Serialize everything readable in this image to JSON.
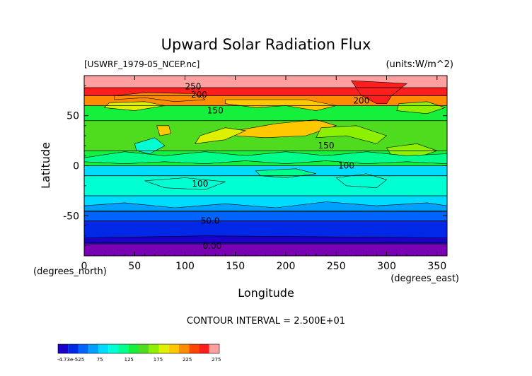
{
  "chart_data": {
    "type": "heatmap",
    "title": "Upward Solar Radiation Flux",
    "file_label": "[USWRF_1979-05_NCEP.nc]",
    "units_label": "(units:W/m^2)",
    "xlabel": "Longitude",
    "ylabel": "Latitude",
    "x_unit_note": "(degrees_east)",
    "y_unit_note": "(degrees_north)",
    "xlim": [
      0,
      360
    ],
    "ylim": [
      -90,
      90
    ],
    "x_ticks": [
      0,
      50,
      100,
      150,
      200,
      250,
      300,
      350
    ],
    "y_ticks": [
      50,
      0,
      -50
    ],
    "contour_interval_text": "CONTOUR INTERVAL = 2.500E+01",
    "contour_interval": 25,
    "colorbar": {
      "labels": [
        "-4.73e-525",
        "75",
        "125",
        "175",
        "225",
        "275"
      ],
      "colors": [
        "#1a00c8",
        "#0028e6",
        "#0064ff",
        "#00a0ff",
        "#00dcff",
        "#00ffd2",
        "#00ff8c",
        "#14f03c",
        "#50dc1e",
        "#8cf000",
        "#dcf000",
        "#ffc800",
        "#ff8c00",
        "#ff4600",
        "#ff1e1e",
        "#ffa0a0"
      ]
    },
    "contour_labels": [
      {
        "text": "250",
        "lon": 108,
        "lat": 79
      },
      {
        "text": "200",
        "lon": 114,
        "lat": 71
      },
      {
        "text": "150",
        "lon": 130,
        "lat": 55
      },
      {
        "text": "200",
        "lon": 275,
        "lat": 65
      },
      {
        "text": "150",
        "lon": 240,
        "lat": 20
      },
      {
        "text": "100",
        "lon": 260,
        "lat": 0
      },
      {
        "text": "100",
        "lon": 115,
        "lat": -18
      },
      {
        "text": "50.0",
        "lon": 125,
        "lat": -55
      },
      {
        "text": "0.00",
        "lon": 127,
        "lat": -80
      }
    ],
    "latitude_bands": [
      {
        "lat": [
          78,
          90
        ],
        "color": "#ffa0a0"
      },
      {
        "lat": [
          70,
          78
        ],
        "color": "#ff1e1e"
      },
      {
        "lat": [
          60,
          70
        ],
        "color": "#ff8c00"
      },
      {
        "lat": [
          45,
          60
        ],
        "color": "#14f03c"
      },
      {
        "lat": [
          15,
          45
        ],
        "color": "#50dc1e"
      },
      {
        "lat": [
          0,
          15
        ],
        "color": "#14f03c"
      },
      {
        "lat": [
          -10,
          0
        ],
        "color": "#00dcff"
      },
      {
        "lat": [
          -30,
          -10
        ],
        "color": "#00ffd2"
      },
      {
        "lat": [
          -45,
          -30
        ],
        "color": "#00dcff"
      },
      {
        "lat": [
          -55,
          -45
        ],
        "color": "#0064ff"
      },
      {
        "lat": [
          -78,
          -55
        ],
        "color": "#0028e6"
      },
      {
        "lat": [
          -90,
          -78
        ],
        "color": "#7a00b4"
      }
    ],
    "regions": [
      {
        "color": "#ff1e1e",
        "pts": [
          [
            265,
            85
          ],
          [
            275,
            70
          ],
          [
            290,
            62
          ],
          [
            300,
            62
          ],
          [
            305,
            70
          ],
          [
            320,
            82
          ],
          [
            265,
            85
          ]
        ]
      },
      {
        "color": "#ff8c00",
        "pts": [
          [
            30,
            66
          ],
          [
            60,
            68
          ],
          [
            90,
            64
          ],
          [
            120,
            66
          ],
          [
            110,
            72
          ],
          [
            60,
            73
          ],
          [
            30,
            70
          ]
        ]
      },
      {
        "color": "#ffc800",
        "pts": [
          [
            140,
            62
          ],
          [
            170,
            58
          ],
          [
            200,
            60
          ],
          [
            230,
            55
          ],
          [
            250,
            60
          ],
          [
            220,
            66
          ],
          [
            170,
            66
          ],
          [
            140,
            66
          ]
        ]
      },
      {
        "color": "#dcf000",
        "pts": [
          [
            20,
            58
          ],
          [
            50,
            55
          ],
          [
            80,
            60
          ],
          [
            60,
            64
          ],
          [
            25,
            63
          ]
        ]
      },
      {
        "color": "#8cf000",
        "pts": [
          [
            310,
            55
          ],
          [
            340,
            52
          ],
          [
            358,
            58
          ],
          [
            340,
            64
          ],
          [
            312,
            62
          ]
        ]
      },
      {
        "color": "#ffc800",
        "pts": [
          [
            150,
            35
          ],
          [
            190,
            42
          ],
          [
            230,
            46
          ],
          [
            250,
            40
          ],
          [
            220,
            30
          ],
          [
            180,
            28
          ],
          [
            150,
            30
          ]
        ]
      },
      {
        "color": "#dcf000",
        "pts": [
          [
            110,
            22
          ],
          [
            140,
            26
          ],
          [
            160,
            35
          ],
          [
            140,
            38
          ],
          [
            115,
            30
          ]
        ]
      },
      {
        "color": "#8cf000",
        "pts": [
          [
            230,
            28
          ],
          [
            260,
            30
          ],
          [
            290,
            22
          ],
          [
            300,
            30
          ],
          [
            270,
            40
          ],
          [
            235,
            38
          ]
        ]
      },
      {
        "color": "#ffc800",
        "pts": [
          [
            72,
            40
          ],
          [
            84,
            40
          ],
          [
            86,
            32
          ],
          [
            75,
            30
          ]
        ]
      },
      {
        "color": "#00ffd2",
        "pts": [
          [
            50,
            22
          ],
          [
            70,
            28
          ],
          [
            80,
            20
          ],
          [
            65,
            12
          ],
          [
            52,
            15
          ]
        ]
      },
      {
        "color": "#8cf000",
        "pts": [
          [
            300,
            18
          ],
          [
            330,
            22
          ],
          [
            350,
            15
          ],
          [
            330,
            8
          ],
          [
            305,
            10
          ]
        ]
      },
      {
        "color": "#00ff8c",
        "pts": [
          [
            0,
            8
          ],
          [
            40,
            14
          ],
          [
            80,
            10
          ],
          [
            120,
            14
          ],
          [
            160,
            10
          ],
          [
            200,
            14
          ],
          [
            240,
            10
          ],
          [
            280,
            14
          ],
          [
            320,
            10
          ],
          [
            360,
            12
          ],
          [
            360,
            2
          ],
          [
            320,
            4
          ],
          [
            280,
            2
          ],
          [
            240,
            5
          ],
          [
            200,
            2
          ],
          [
            160,
            5
          ],
          [
            120,
            2
          ],
          [
            80,
            4
          ],
          [
            40,
            2
          ],
          [
            0,
            4
          ]
        ]
      },
      {
        "color": "#00a0ff",
        "pts": [
          [
            0,
            -40
          ],
          [
            40,
            -37
          ],
          [
            90,
            -42
          ],
          [
            140,
            -38
          ],
          [
            190,
            -42
          ],
          [
            240,
            -36
          ],
          [
            290,
            -40
          ],
          [
            340,
            -37
          ],
          [
            360,
            -40
          ],
          [
            360,
            -46
          ],
          [
            0,
            -46
          ]
        ]
      },
      {
        "color": "#00ffd2",
        "pts": [
          [
            60,
            -15
          ],
          [
            100,
            -12
          ],
          [
            140,
            -16
          ],
          [
            120,
            -24
          ],
          [
            80,
            -22
          ]
        ]
      },
      {
        "color": "#00ffd2",
        "pts": [
          [
            250,
            -12
          ],
          [
            280,
            -8
          ],
          [
            300,
            -14
          ],
          [
            290,
            -22
          ],
          [
            260,
            -20
          ]
        ]
      },
      {
        "color": "#00ff8c",
        "pts": [
          [
            170,
            -5
          ],
          [
            210,
            -3
          ],
          [
            230,
            -8
          ],
          [
            200,
            -12
          ],
          [
            175,
            -10
          ]
        ]
      },
      {
        "color": "#1a00c8",
        "pts": [
          [
            0,
            -72
          ],
          [
            120,
            -70
          ],
          [
            240,
            -71
          ],
          [
            360,
            -72
          ],
          [
            360,
            -77
          ],
          [
            0,
            -77
          ]
        ]
      }
    ]
  }
}
